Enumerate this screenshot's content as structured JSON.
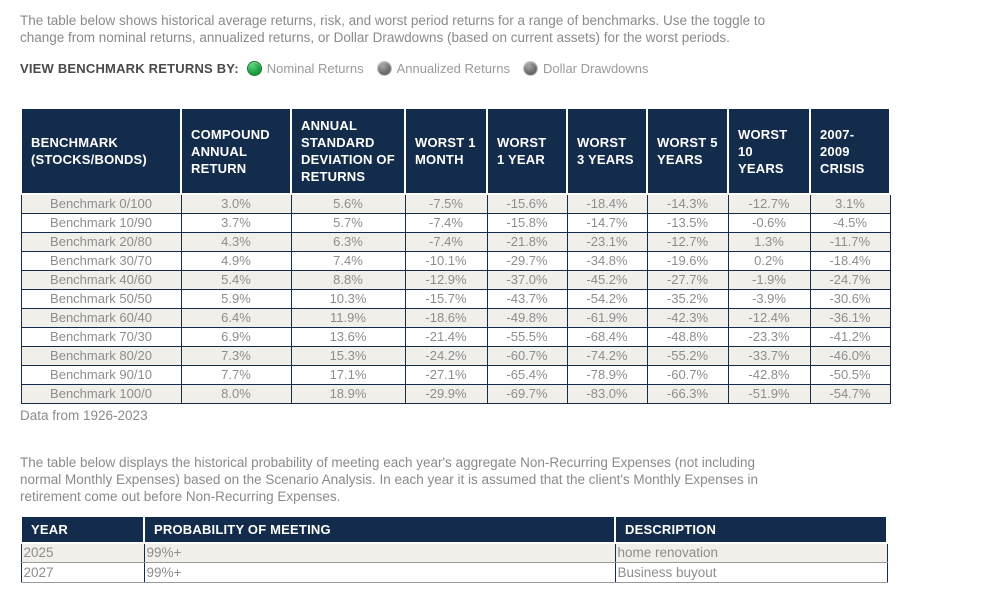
{
  "colors": {
    "header_navy": "#132c4b",
    "selected_radio_green": "#22a447",
    "unselected_radio_gray": "#707070",
    "alt_row_background": "#f1efea",
    "body_text_gray": "#8a8a8a"
  },
  "intro": {
    "text": "The table below shows historical average returns, risk, and worst period returns for a range of benchmarks. Use the toggle to change from nominal returns, annualized returns, or Dollar Drawdowns (based on current assets) for the worst periods."
  },
  "toggle": {
    "label": "VIEW BENCHMARK RETURNS BY:",
    "options": [
      {
        "label": "Nominal Returns",
        "selected": true
      },
      {
        "label": "Annualized Returns",
        "selected": false
      },
      {
        "label": "Dollar Drawdowns",
        "selected": false
      }
    ]
  },
  "benchmark_table": {
    "headers": [
      "BENCHMARK (STOCKS/BONDS)",
      "COMPOUND ANNUAL RETURN",
      "ANNUAL STANDARD DEVIATION OF RETURNS",
      "WORST 1 MONTH",
      "WORST 1 YEAR",
      "WORST 3 YEARS",
      "WORST 5 YEARS",
      "WORST 10 YEARS",
      "2007-2009 CRISIS"
    ],
    "rows": [
      [
        "Benchmark 0/100",
        "3.0%",
        "5.6%",
        "-7.5%",
        "-15.6%",
        "-18.4%",
        "-14.3%",
        "-12.7%",
        "3.1%"
      ],
      [
        "Benchmark 10/90",
        "3.7%",
        "5.7%",
        "-7.4%",
        "-15.8%",
        "-14.7%",
        "-13.5%",
        "-0.6%",
        "-4.5%"
      ],
      [
        "Benchmark 20/80",
        "4.3%",
        "6.3%",
        "-7.4%",
        "-21.8%",
        "-23.1%",
        "-12.7%",
        "1.3%",
        "-11.7%"
      ],
      [
        "Benchmark 30/70",
        "4.9%",
        "7.4%",
        "-10.1%",
        "-29.7%",
        "-34.8%",
        "-19.6%",
        "0.2%",
        "-18.4%"
      ],
      [
        "Benchmark 40/60",
        "5.4%",
        "8.8%",
        "-12.9%",
        "-37.0%",
        "-45.2%",
        "-27.7%",
        "-1.9%",
        "-24.7%"
      ],
      [
        "Benchmark 50/50",
        "5.9%",
        "10.3%",
        "-15.7%",
        "-43.7%",
        "-54.2%",
        "-35.2%",
        "-3.9%",
        "-30.6%"
      ],
      [
        "Benchmark 60/40",
        "6.4%",
        "11.9%",
        "-18.6%",
        "-49.8%",
        "-61.9%",
        "-42.3%",
        "-12.4%",
        "-36.1%"
      ],
      [
        "Benchmark 70/30",
        "6.9%",
        "13.6%",
        "-21.4%",
        "-55.5%",
        "-68.4%",
        "-48.8%",
        "-23.3%",
        "-41.2%"
      ],
      [
        "Benchmark 80/20",
        "7.3%",
        "15.3%",
        "-24.2%",
        "-60.7%",
        "-74.2%",
        "-55.2%",
        "-33.7%",
        "-46.0%"
      ],
      [
        "Benchmark 90/10",
        "7.7%",
        "17.1%",
        "-27.1%",
        "-65.4%",
        "-78.9%",
        "-60.7%",
        "-42.8%",
        "-50.5%"
      ],
      [
        "Benchmark 100/0",
        "8.0%",
        "18.9%",
        "-29.9%",
        "-69.7%",
        "-83.0%",
        "-66.3%",
        "-51.9%",
        "-54.7%"
      ]
    ],
    "footnote": "Data from 1926-2023"
  },
  "expenses_intro": {
    "text": "The table below displays the historical probability of meeting each year's aggregate Non-Recurring Expenses (not including normal Monthly Expenses) based on the Scenario Analysis. In each year it is assumed that the client's Monthly Expenses in retirement come out before Non-Recurring Expenses."
  },
  "probability_table": {
    "headers": [
      "YEAR",
      "PROBABILITY OF MEETING",
      "DESCRIPTION"
    ],
    "rows": [
      [
        "2025",
        "99%+",
        "home renovation"
      ],
      [
        "2027",
        "99%+",
        "Business buyout"
      ]
    ]
  }
}
